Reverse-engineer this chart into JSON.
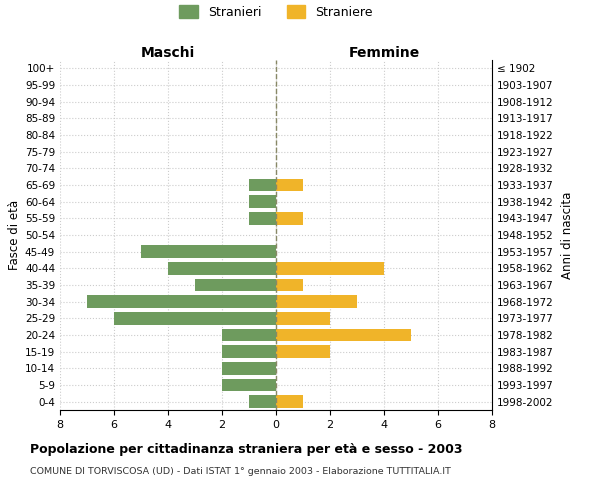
{
  "age_groups": [
    "0-4",
    "5-9",
    "10-14",
    "15-19",
    "20-24",
    "25-29",
    "30-34",
    "35-39",
    "40-44",
    "45-49",
    "50-54",
    "55-59",
    "60-64",
    "65-69",
    "70-74",
    "75-79",
    "80-84",
    "85-89",
    "90-94",
    "95-99",
    "100+"
  ],
  "birth_years": [
    "1998-2002",
    "1993-1997",
    "1988-1992",
    "1983-1987",
    "1978-1982",
    "1973-1977",
    "1968-1972",
    "1963-1967",
    "1958-1962",
    "1953-1957",
    "1948-1952",
    "1943-1947",
    "1938-1942",
    "1933-1937",
    "1928-1932",
    "1923-1927",
    "1918-1922",
    "1913-1917",
    "1908-1912",
    "1903-1907",
    "≤ 1902"
  ],
  "males": [
    1,
    2,
    2,
    2,
    2,
    6,
    7,
    3,
    4,
    5,
    0,
    1,
    1,
    1,
    0,
    0,
    0,
    0,
    0,
    0,
    0
  ],
  "females": [
    1,
    0,
    0,
    2,
    5,
    2,
    3,
    1,
    4,
    0,
    0,
    1,
    0,
    1,
    0,
    0,
    0,
    0,
    0,
    0,
    0
  ],
  "male_color": "#6e9b5e",
  "female_color": "#f0b429",
  "background_color": "#ffffff",
  "grid_color": "#cccccc",
  "center_line_color": "#888866",
  "title": "Popolazione per cittadinanza straniera per età e sesso - 2003",
  "subtitle": "COMUNE DI TORVISCOSA (UD) - Dati ISTAT 1° gennaio 2003 - Elaborazione TUTTITALIA.IT",
  "xlabel_left": "Maschi",
  "xlabel_right": "Femmine",
  "ylabel_left": "Fasce di età",
  "ylabel_right": "Anni di nascita",
  "legend_male": "Stranieri",
  "legend_female": "Straniere",
  "xlim": 8,
  "bar_height": 0.75
}
